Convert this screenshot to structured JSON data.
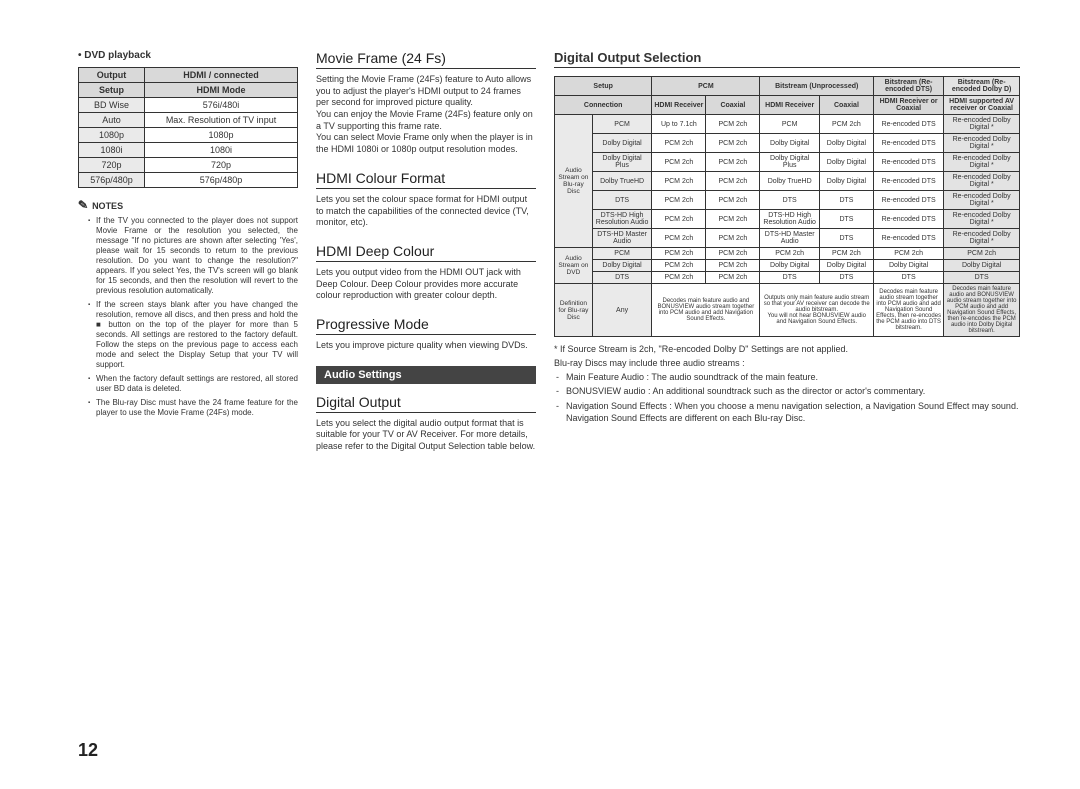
{
  "left": {
    "dvd_playback_label": "DVD playback",
    "table_headers": [
      "Output",
      "HDMI / connected"
    ],
    "setup_row": [
      "Setup",
      "HDMI Mode"
    ],
    "rows": [
      [
        "BD Wise",
        "576i/480i"
      ],
      [
        "Auto",
        "Max. Resolution of TV input"
      ],
      [
        "1080p",
        "1080p"
      ],
      [
        "1080i",
        "1080i"
      ],
      [
        "720p",
        "720p"
      ],
      [
        "576p/480p",
        "576p/480p"
      ]
    ],
    "notes_label": "NOTES",
    "notes": [
      "If the TV you connected to the player does not support Movie Frame or the resolution you selected, the message \"If no pictures are shown after selecting 'Yes', please wait for 15 seconds to return to the previous resolution. Do you want to change the resolution?\" appears. If you select Yes, the TV's screen will go blank for 15 seconds, and then the resolution will revert to the previous resolution automatically.",
      "If the screen stays blank after you have changed the resolution, remove all discs, and then press and hold the ■ button on the top of the player for more than 5 seconds. All settings are restored to the factory default. Follow the steps on the previous page to access each mode and select the Display Setup that your TV will support.",
      "When the factory default settings are restored, all stored user BD data is deleted.",
      "The Blu-ray Disc must have the 24 frame feature for the player to use the Movie Frame (24Fs) mode."
    ]
  },
  "middle": {
    "s1_h": "Movie Frame (24 Fs)",
    "s1_p": "Setting the Movie Frame (24Fs) feature to Auto allows you to adjust the player's HDMI output to 24 frames per second for improved picture quality.\nYou can enjoy the Movie Frame (24Fs) feature only on a TV supporting this frame rate.\nYou can select Movie Frame only when the player is in the HDMI 1080i or 1080p output resolution modes.",
    "s2_h": "HDMI Colour Format",
    "s2_p": "Lets you set the colour space format for HDMI output to match the capabilities of the connected device (TV, monitor, etc).",
    "s3_h": "HDMI Deep Colour",
    "s3_p": "Lets you output video from the HDMI OUT jack with Deep Colour. Deep Colour provides more accurate colour reproduction with greater colour depth.",
    "s4_h": "Progressive Mode",
    "s4_p": "Lets you improve picture quality when viewing DVDs.",
    "audio_banner": "Audio Settings",
    "s5_h": "Digital Output",
    "s5_p": "Lets you select the digital audio output format that is suitable for your TV or AV Receiver. For more details, please refer to the Digital Output Selection table below."
  },
  "right": {
    "h": "Digital Output Selection",
    "header1": [
      "Setup",
      "PCM",
      "Bitstream (Unprocessed)",
      "Bitstream (Re-encoded DTS)",
      "Bitstream (Re-encoded Dolby D)"
    ],
    "header2": [
      "Connection",
      "HDMI Receiver",
      "Coaxial",
      "HDMI Receiver",
      "Coaxial",
      "HDMI Receiver or Coaxial",
      "HDMI supported AV receiver or Coaxial"
    ],
    "group1_label": "Audio Stream on Blu-ray Disc",
    "group1_rows": [
      [
        "PCM",
        "Up to 7.1ch",
        "PCM 2ch",
        "PCM",
        "PCM 2ch",
        "Re-encoded DTS",
        "Re-encoded Dolby Digital *"
      ],
      [
        "Dolby Digital",
        "PCM 2ch",
        "PCM 2ch",
        "Dolby Digital",
        "Dolby Digital",
        "Re-encoded DTS",
        "Re-encoded Dolby Digital *"
      ],
      [
        "Dolby Digital Plus",
        "PCM 2ch",
        "PCM 2ch",
        "Dolby Digital Plus",
        "Dolby Digital",
        "Re-encoded DTS",
        "Re-encoded Dolby Digital *"
      ],
      [
        "Dolby TrueHD",
        "PCM 2ch",
        "PCM 2ch",
        "Dolby TrueHD",
        "Dolby Digital",
        "Re-encoded DTS",
        "Re-encoded Dolby Digital *"
      ],
      [
        "DTS",
        "PCM 2ch",
        "PCM 2ch",
        "DTS",
        "DTS",
        "Re-encoded DTS",
        "Re-encoded Dolby Digital *"
      ],
      [
        "DTS-HD High Resolution Audio",
        "PCM 2ch",
        "PCM 2ch",
        "DTS-HD High Resolution Audio",
        "DTS",
        "Re-encoded DTS",
        "Re-encoded Dolby Digital *"
      ],
      [
        "DTS-HD Master Audio",
        "PCM 2ch",
        "PCM 2ch",
        "DTS-HD Master Audio",
        "DTS",
        "Re-encoded DTS",
        "Re-encoded Dolby Digital *"
      ]
    ],
    "group2_label": "Audio Stream on DVD",
    "group2_rows": [
      [
        "PCM",
        "PCM 2ch",
        "PCM 2ch",
        "PCM 2ch",
        "PCM 2ch",
        "PCM 2ch",
        "PCM 2ch"
      ],
      [
        "Dolby Digital",
        "PCM 2ch",
        "PCM 2ch",
        "Dolby Digital",
        "Dolby Digital",
        "Dolby Digital",
        "Dolby Digital"
      ],
      [
        "DTS",
        "PCM 2ch",
        "PCM 2ch",
        "DTS",
        "DTS",
        "DTS",
        "DTS"
      ]
    ],
    "group3_label": "Definition for Blu-ray Disc",
    "group3_rows": [
      [
        "Any",
        "Decodes main feature audio and BONUSVIEW audio stream together into PCM audio and add Navigation Sound Effects.",
        "Outputs only main feature audio stream so that your AV receiver can decode the audio bitstream.\nYou will not hear BONUSVIEW audio and Navigation Sound Effects.",
        "Decodes main feature audio stream together into PCM audio and add Navigation Sound Effects, then re-encodes the PCM audio into DTS bitstream.",
        "Decodes main feature audio and BONUSVIEW audio stream together into PCM audio and add Navigation Sound Effects, then re-encodes the PCM audio into Dolby Digital bitstream."
      ]
    ],
    "footnote_star": "* If Source Stream is 2ch, \"Re-encoded Dolby D\" Settings are not applied.",
    "footnote_intro": "Blu-ray Discs may include three audio streams :",
    "footnote_items": [
      "Main Feature Audio : The audio soundtrack of the main feature.",
      "BONUSVIEW audio : An additional soundtrack such as the director or actor's commentary.",
      "Navigation Sound Effects : When you choose a menu navigation selection, a Navigation Sound Effect may sound. Navigation Sound Effects are different on each Blu-ray Disc."
    ]
  },
  "page_num": "12"
}
